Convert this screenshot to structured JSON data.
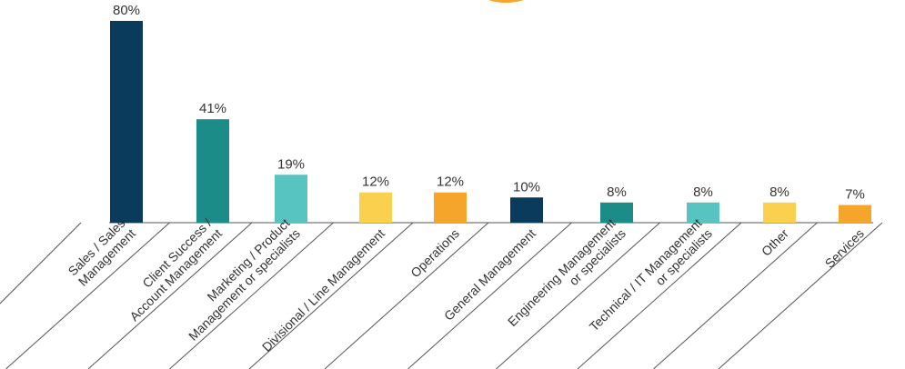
{
  "chart_data": {
    "type": "bar",
    "categories": [
      [
        "Sales / Sales",
        "Management"
      ],
      [
        "Client Success /",
        "Account Management"
      ],
      [
        "Marketing / Product",
        "Management or specialists"
      ],
      [
        "Divisional / Line Management"
      ],
      [
        "Operations"
      ],
      [
        "General Management"
      ],
      [
        "Engineering Management",
        "or specialists"
      ],
      [
        "Technical / IT Management",
        "or specialists"
      ],
      [
        "Other"
      ],
      [
        "Services"
      ]
    ],
    "values": [
      80,
      41,
      19,
      12,
      12,
      10,
      8,
      8,
      8,
      7
    ],
    "data_labels": [
      "80%",
      "41%",
      "19%",
      "12%",
      "12%",
      "10%",
      "8%",
      "8%",
      "8%",
      "7%"
    ],
    "colors": [
      "#0a3a5c",
      "#1b8c88",
      "#58c4c1",
      "#fcd04f",
      "#f5a52a",
      "#0a3a5c",
      "#1b8c88",
      "#58c4c1",
      "#fcd04f",
      "#f5a52a"
    ],
    "ylim": [
      0,
      80
    ],
    "grid": false,
    "title": "",
    "xlabel": "",
    "ylabel": ""
  },
  "decoration": {
    "accent_color": "#f5a52a"
  }
}
